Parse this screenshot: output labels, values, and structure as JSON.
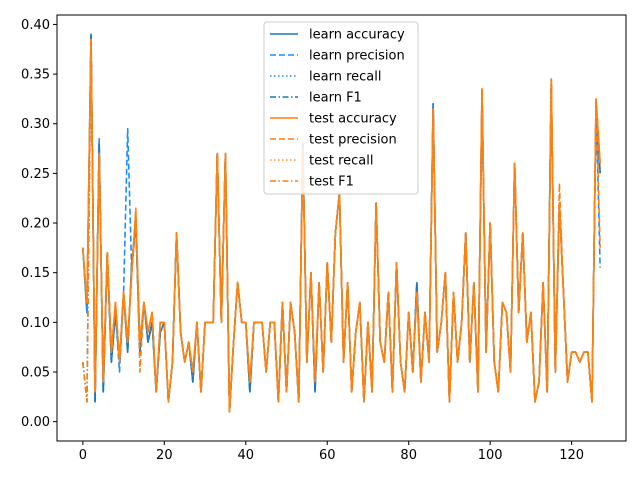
{
  "chart_data": {
    "type": "line",
    "title": "",
    "xlabel": "",
    "ylabel": "",
    "xlim": [
      -6.35,
      133.35
    ],
    "ylim": [
      -0.0195,
      0.4095
    ],
    "x_ticks": [
      0,
      20,
      40,
      60,
      80,
      100,
      120
    ],
    "x_tick_labels": [
      "0",
      "20",
      "40",
      "60",
      "80",
      "100",
      "120"
    ],
    "y_ticks": [
      0.0,
      0.05,
      0.1,
      0.15,
      0.2,
      0.25,
      0.3,
      0.35,
      0.4
    ],
    "y_tick_labels": [
      "0.00",
      "0.05",
      "0.10",
      "0.15",
      "0.20",
      "0.25",
      "0.30",
      "0.35",
      "0.40"
    ],
    "grid": false,
    "legend_position": "top-center",
    "x": [
      0,
      1,
      2,
      3,
      4,
      5,
      6,
      7,
      8,
      9,
      10,
      11,
      12,
      13,
      14,
      15,
      16,
      17,
      18,
      19,
      20,
      21,
      22,
      23,
      24,
      25,
      26,
      27,
      28,
      29,
      30,
      31,
      32,
      33,
      34,
      35,
      36,
      37,
      38,
      39,
      40,
      41,
      42,
      43,
      44,
      45,
      46,
      47,
      48,
      49,
      50,
      51,
      52,
      53,
      54,
      55,
      56,
      57,
      58,
      59,
      60,
      61,
      62,
      63,
      64,
      65,
      66,
      67,
      68,
      69,
      70,
      71,
      72,
      73,
      74,
      75,
      76,
      77,
      78,
      79,
      80,
      81,
      82,
      83,
      84,
      85,
      86,
      87,
      88,
      89,
      90,
      91,
      92,
      93,
      94,
      95,
      96,
      97,
      98,
      99,
      100,
      101,
      102,
      103,
      104,
      105,
      106,
      107,
      108,
      109,
      110,
      111,
      112,
      113,
      114,
      115,
      116,
      117,
      118,
      119,
      120,
      121,
      122,
      123,
      124,
      125,
      126,
      127
    ],
    "series": [
      {
        "name": "learn accuracy",
        "color": "#1f77b4",
        "style": "solid",
        "values": [
          0.175,
          0.11,
          0.39,
          0.02,
          0.28,
          0.03,
          0.17,
          0.06,
          0.11,
          0.06,
          0.13,
          0.07,
          0.16,
          0.2,
          0.07,
          0.12,
          0.08,
          0.1,
          0.03,
          0.09,
          0.1,
          0.02,
          0.06,
          0.19,
          0.09,
          0.06,
          0.08,
          0.04,
          0.1,
          0.03,
          0.1,
          0.1,
          0.1,
          0.27,
          0.1,
          0.27,
          0.01,
          0.08,
          0.14,
          0.1,
          0.1,
          0.03,
          0.1,
          0.1,
          0.1,
          0.05,
          0.1,
          0.1,
          0.02,
          0.12,
          0.03,
          0.12,
          0.09,
          0.02,
          0.28,
          0.06,
          0.15,
          0.03,
          0.14,
          0.05,
          0.16,
          0.08,
          0.19,
          0.23,
          0.06,
          0.14,
          0.03,
          0.09,
          0.12,
          0.02,
          0.1,
          0.03,
          0.22,
          0.08,
          0.06,
          0.13,
          0.03,
          0.16,
          0.06,
          0.03,
          0.11,
          0.05,
          0.14,
          0.04,
          0.11,
          0.06,
          0.32,
          0.07,
          0.1,
          0.15,
          0.02,
          0.13,
          0.06,
          0.1,
          0.19,
          0.06,
          0.14,
          0.03,
          0.33,
          0.07,
          0.2,
          0.06,
          0.03,
          0.12,
          0.11,
          0.05,
          0.26,
          0.11,
          0.19,
          0.08,
          0.11,
          0.02,
          0.04,
          0.14,
          0.03,
          0.34,
          0.05,
          0.22,
          0.13,
          0.04,
          0.07,
          0.07,
          0.06,
          0.07,
          0.07,
          0.02,
          0.32,
          0.25
        ]
      },
      {
        "name": "learn precision",
        "color": "#1a8cff",
        "style": "dashed",
        "values": [
          0.175,
          0.11,
          0.39,
          0.02,
          0.285,
          0.03,
          0.17,
          0.06,
          0.11,
          0.05,
          0.13,
          0.295,
          0.15,
          0.2,
          0.07,
          0.12,
          0.08,
          0.1,
          0.03,
          0.09,
          0.1,
          0.02,
          0.06,
          0.19,
          0.09,
          0.06,
          0.08,
          0.04,
          0.1,
          0.03,
          0.1,
          0.1,
          0.1,
          0.27,
          0.1,
          0.27,
          0.01,
          0.08,
          0.14,
          0.1,
          0.1,
          0.03,
          0.1,
          0.1,
          0.1,
          0.05,
          0.1,
          0.1,
          0.02,
          0.12,
          0.03,
          0.12,
          0.09,
          0.02,
          0.28,
          0.06,
          0.15,
          0.03,
          0.14,
          0.05,
          0.16,
          0.08,
          0.19,
          0.23,
          0.06,
          0.14,
          0.03,
          0.09,
          0.12,
          0.02,
          0.1,
          0.03,
          0.22,
          0.08,
          0.06,
          0.13,
          0.03,
          0.16,
          0.06,
          0.03,
          0.11,
          0.05,
          0.14,
          0.04,
          0.11,
          0.06,
          0.32,
          0.07,
          0.1,
          0.15,
          0.02,
          0.13,
          0.06,
          0.1,
          0.19,
          0.06,
          0.14,
          0.03,
          0.33,
          0.07,
          0.2,
          0.06,
          0.03,
          0.12,
          0.11,
          0.05,
          0.26,
          0.11,
          0.19,
          0.08,
          0.11,
          0.02,
          0.04,
          0.14,
          0.03,
          0.34,
          0.05,
          0.22,
          0.13,
          0.04,
          0.07,
          0.07,
          0.06,
          0.07,
          0.07,
          0.02,
          0.32,
          0.155
        ]
      },
      {
        "name": "learn recall",
        "color": "#1f8fd6",
        "style": "dotted",
        "values": [
          0.175,
          0.11,
          0.385,
          0.02,
          0.28,
          0.03,
          0.17,
          0.06,
          0.11,
          0.06,
          0.13,
          0.07,
          0.16,
          0.2,
          0.07,
          0.12,
          0.08,
          0.1,
          0.03,
          0.09,
          0.1,
          0.02,
          0.06,
          0.19,
          0.09,
          0.06,
          0.08,
          0.04,
          0.1,
          0.03,
          0.1,
          0.1,
          0.1,
          0.27,
          0.1,
          0.27,
          0.01,
          0.08,
          0.14,
          0.1,
          0.1,
          0.03,
          0.1,
          0.1,
          0.1,
          0.05,
          0.1,
          0.1,
          0.02,
          0.12,
          0.03,
          0.12,
          0.09,
          0.02,
          0.28,
          0.06,
          0.15,
          0.03,
          0.14,
          0.05,
          0.16,
          0.08,
          0.19,
          0.23,
          0.06,
          0.14,
          0.03,
          0.09,
          0.12,
          0.02,
          0.1,
          0.03,
          0.22,
          0.08,
          0.06,
          0.13,
          0.03,
          0.16,
          0.06,
          0.03,
          0.11,
          0.05,
          0.14,
          0.04,
          0.11,
          0.06,
          0.32,
          0.07,
          0.1,
          0.15,
          0.02,
          0.13,
          0.06,
          0.1,
          0.19,
          0.06,
          0.14,
          0.03,
          0.33,
          0.07,
          0.2,
          0.06,
          0.03,
          0.12,
          0.11,
          0.05,
          0.26,
          0.11,
          0.19,
          0.08,
          0.11,
          0.02,
          0.04,
          0.14,
          0.03,
          0.34,
          0.05,
          0.22,
          0.13,
          0.04,
          0.07,
          0.07,
          0.06,
          0.07,
          0.07,
          0.02,
          0.32,
          0.25
        ]
      },
      {
        "name": "learn F1",
        "color": "#1f77b4",
        "style": "dashdot",
        "values": [
          0.06,
          0.02,
          0.39,
          0.02,
          0.28,
          0.03,
          0.17,
          0.06,
          0.11,
          0.06,
          0.13,
          0.07,
          0.16,
          0.2,
          0.07,
          0.12,
          0.08,
          0.1,
          0.03,
          0.09,
          0.1,
          0.02,
          0.06,
          0.19,
          0.09,
          0.06,
          0.08,
          0.04,
          0.1,
          0.03,
          0.1,
          0.1,
          0.1,
          0.27,
          0.1,
          0.27,
          0.01,
          0.08,
          0.14,
          0.1,
          0.1,
          0.03,
          0.1,
          0.1,
          0.1,
          0.05,
          0.1,
          0.1,
          0.02,
          0.12,
          0.03,
          0.12,
          0.09,
          0.02,
          0.28,
          0.06,
          0.15,
          0.03,
          0.14,
          0.05,
          0.16,
          0.08,
          0.19,
          0.23,
          0.06,
          0.14,
          0.03,
          0.09,
          0.12,
          0.02,
          0.1,
          0.03,
          0.22,
          0.08,
          0.06,
          0.13,
          0.03,
          0.16,
          0.06,
          0.03,
          0.11,
          0.05,
          0.14,
          0.04,
          0.11,
          0.06,
          0.32,
          0.07,
          0.1,
          0.15,
          0.02,
          0.13,
          0.06,
          0.1,
          0.19,
          0.06,
          0.14,
          0.03,
          0.33,
          0.07,
          0.2,
          0.06,
          0.03,
          0.12,
          0.11,
          0.05,
          0.26,
          0.11,
          0.19,
          0.08,
          0.11,
          0.02,
          0.04,
          0.14,
          0.03,
          0.34,
          0.05,
          0.22,
          0.13,
          0.04,
          0.07,
          0.07,
          0.06,
          0.07,
          0.07,
          0.02,
          0.32,
          0.25
        ]
      },
      {
        "name": "test accuracy",
        "color": "#ff7f0e",
        "style": "solid",
        "values": [
          0.175,
          0.12,
          0.385,
          0.03,
          0.27,
          0.04,
          0.17,
          0.07,
          0.12,
          0.06,
          0.13,
          0.08,
          0.15,
          0.21,
          0.08,
          0.12,
          0.09,
          0.11,
          0.03,
          0.1,
          0.1,
          0.02,
          0.06,
          0.19,
          0.09,
          0.06,
          0.08,
          0.05,
          0.1,
          0.03,
          0.1,
          0.1,
          0.1,
          0.27,
          0.1,
          0.27,
          0.01,
          0.08,
          0.14,
          0.1,
          0.1,
          0.04,
          0.1,
          0.1,
          0.1,
          0.05,
          0.1,
          0.1,
          0.02,
          0.12,
          0.03,
          0.12,
          0.09,
          0.02,
          0.275,
          0.06,
          0.15,
          0.04,
          0.14,
          0.05,
          0.16,
          0.08,
          0.19,
          0.23,
          0.06,
          0.14,
          0.03,
          0.09,
          0.12,
          0.02,
          0.1,
          0.03,
          0.22,
          0.08,
          0.06,
          0.13,
          0.03,
          0.16,
          0.06,
          0.03,
          0.11,
          0.05,
          0.13,
          0.04,
          0.11,
          0.06,
          0.315,
          0.07,
          0.1,
          0.15,
          0.02,
          0.13,
          0.06,
          0.1,
          0.19,
          0.06,
          0.14,
          0.03,
          0.335,
          0.07,
          0.2,
          0.06,
          0.03,
          0.12,
          0.11,
          0.05,
          0.26,
          0.11,
          0.19,
          0.08,
          0.11,
          0.02,
          0.04,
          0.14,
          0.03,
          0.345,
          0.05,
          0.22,
          0.13,
          0.04,
          0.07,
          0.07,
          0.06,
          0.07,
          0.07,
          0.02,
          0.325,
          0.26
        ]
      },
      {
        "name": "test precision",
        "color": "#ff7f0e",
        "style": "dashed",
        "values": [
          0.175,
          0.12,
          0.38,
          0.03,
          0.27,
          0.04,
          0.17,
          0.07,
          0.12,
          0.06,
          0.13,
          0.08,
          0.15,
          0.215,
          0.05,
          0.12,
          0.09,
          0.11,
          0.03,
          0.1,
          0.1,
          0.02,
          0.06,
          0.19,
          0.09,
          0.06,
          0.08,
          0.05,
          0.1,
          0.03,
          0.1,
          0.1,
          0.1,
          0.27,
          0.1,
          0.27,
          0.01,
          0.08,
          0.14,
          0.1,
          0.1,
          0.04,
          0.1,
          0.1,
          0.1,
          0.05,
          0.1,
          0.1,
          0.02,
          0.12,
          0.03,
          0.12,
          0.09,
          0.02,
          0.275,
          0.06,
          0.15,
          0.04,
          0.14,
          0.05,
          0.16,
          0.08,
          0.19,
          0.23,
          0.06,
          0.14,
          0.03,
          0.09,
          0.12,
          0.02,
          0.1,
          0.03,
          0.22,
          0.08,
          0.06,
          0.13,
          0.03,
          0.16,
          0.06,
          0.03,
          0.11,
          0.05,
          0.13,
          0.04,
          0.11,
          0.06,
          0.315,
          0.07,
          0.1,
          0.15,
          0.02,
          0.13,
          0.06,
          0.1,
          0.19,
          0.06,
          0.14,
          0.03,
          0.335,
          0.07,
          0.2,
          0.06,
          0.03,
          0.12,
          0.11,
          0.05,
          0.26,
          0.11,
          0.19,
          0.08,
          0.11,
          0.02,
          0.04,
          0.14,
          0.03,
          0.345,
          0.05,
          0.24,
          0.13,
          0.04,
          0.07,
          0.07,
          0.06,
          0.07,
          0.07,
          0.02,
          0.325,
          0.175
        ]
      },
      {
        "name": "test recall",
        "color": "#ff9020",
        "style": "dotted",
        "values": [
          0.175,
          0.12,
          0.385,
          0.03,
          0.27,
          0.04,
          0.17,
          0.07,
          0.12,
          0.06,
          0.13,
          0.08,
          0.15,
          0.21,
          0.08,
          0.12,
          0.09,
          0.11,
          0.03,
          0.1,
          0.1,
          0.02,
          0.06,
          0.19,
          0.09,
          0.06,
          0.08,
          0.05,
          0.1,
          0.03,
          0.1,
          0.1,
          0.1,
          0.27,
          0.1,
          0.27,
          0.01,
          0.08,
          0.14,
          0.1,
          0.1,
          0.04,
          0.1,
          0.1,
          0.1,
          0.05,
          0.1,
          0.1,
          0.02,
          0.12,
          0.03,
          0.12,
          0.09,
          0.02,
          0.275,
          0.06,
          0.15,
          0.04,
          0.14,
          0.05,
          0.16,
          0.08,
          0.19,
          0.23,
          0.06,
          0.14,
          0.03,
          0.09,
          0.12,
          0.02,
          0.1,
          0.03,
          0.22,
          0.08,
          0.06,
          0.13,
          0.03,
          0.16,
          0.06,
          0.03,
          0.11,
          0.05,
          0.13,
          0.04,
          0.11,
          0.06,
          0.315,
          0.07,
          0.1,
          0.15,
          0.02,
          0.13,
          0.06,
          0.1,
          0.19,
          0.06,
          0.14,
          0.03,
          0.335,
          0.07,
          0.2,
          0.06,
          0.03,
          0.12,
          0.11,
          0.05,
          0.26,
          0.11,
          0.19,
          0.08,
          0.11,
          0.02,
          0.04,
          0.14,
          0.03,
          0.345,
          0.05,
          0.22,
          0.13,
          0.04,
          0.07,
          0.07,
          0.06,
          0.07,
          0.07,
          0.02,
          0.325,
          0.26
        ]
      },
      {
        "name": "test F1",
        "color": "#ff7f0e",
        "style": "dashdot",
        "values": [
          0.06,
          0.02,
          0.385,
          0.03,
          0.27,
          0.04,
          0.17,
          0.07,
          0.12,
          0.06,
          0.13,
          0.08,
          0.15,
          0.21,
          0.08,
          0.12,
          0.09,
          0.11,
          0.03,
          0.1,
          0.1,
          0.02,
          0.06,
          0.19,
          0.09,
          0.06,
          0.08,
          0.05,
          0.1,
          0.03,
          0.1,
          0.1,
          0.1,
          0.27,
          0.1,
          0.27,
          0.01,
          0.08,
          0.14,
          0.1,
          0.1,
          0.04,
          0.1,
          0.1,
          0.1,
          0.05,
          0.1,
          0.1,
          0.02,
          0.12,
          0.03,
          0.12,
          0.09,
          0.02,
          0.275,
          0.06,
          0.15,
          0.04,
          0.14,
          0.05,
          0.16,
          0.08,
          0.19,
          0.23,
          0.06,
          0.14,
          0.03,
          0.09,
          0.12,
          0.02,
          0.1,
          0.03,
          0.22,
          0.08,
          0.06,
          0.13,
          0.03,
          0.16,
          0.06,
          0.03,
          0.11,
          0.05,
          0.13,
          0.04,
          0.11,
          0.06,
          0.315,
          0.07,
          0.1,
          0.15,
          0.02,
          0.13,
          0.06,
          0.1,
          0.19,
          0.06,
          0.14,
          0.03,
          0.335,
          0.07,
          0.2,
          0.06,
          0.03,
          0.12,
          0.11,
          0.05,
          0.26,
          0.11,
          0.19,
          0.08,
          0.11,
          0.02,
          0.04,
          0.14,
          0.03,
          0.345,
          0.05,
          0.22,
          0.13,
          0.04,
          0.07,
          0.07,
          0.06,
          0.07,
          0.07,
          0.02,
          0.325,
          0.26
        ]
      }
    ]
  }
}
